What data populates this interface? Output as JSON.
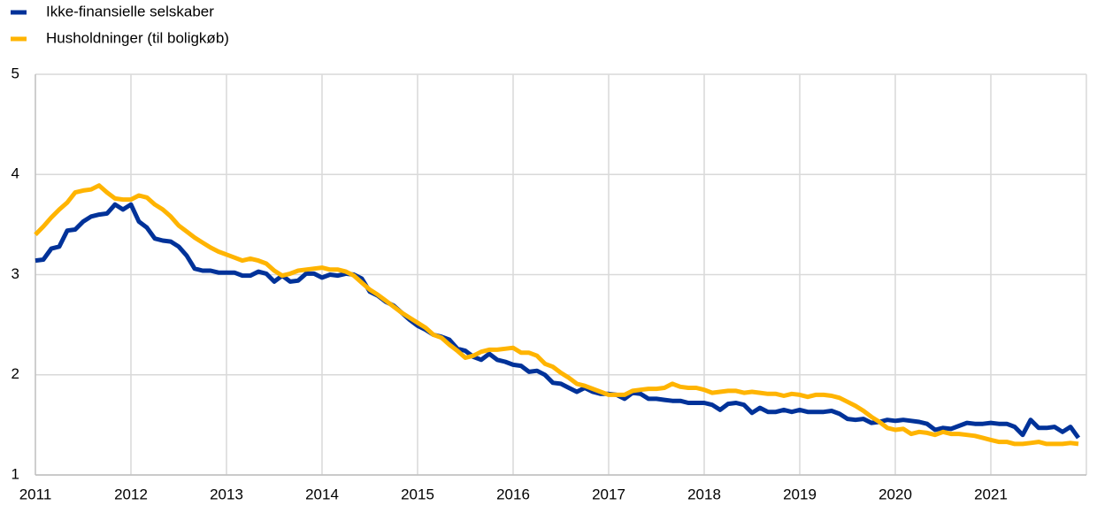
{
  "chart_data": {
    "type": "line",
    "x": [
      2011,
      2011.083,
      2011.167,
      2011.25,
      2011.333,
      2011.417,
      2011.5,
      2011.583,
      2011.667,
      2011.75,
      2011.833,
      2011.917,
      2012,
      2012.083,
      2012.167,
      2012.25,
      2012.333,
      2012.417,
      2012.5,
      2012.583,
      2012.667,
      2012.75,
      2012.833,
      2012.917,
      2013,
      2013.083,
      2013.167,
      2013.25,
      2013.333,
      2013.417,
      2013.5,
      2013.583,
      2013.667,
      2013.75,
      2013.833,
      2013.917,
      2014,
      2014.083,
      2014.167,
      2014.25,
      2014.333,
      2014.417,
      2014.5,
      2014.583,
      2014.667,
      2014.75,
      2014.833,
      2014.917,
      2015,
      2015.083,
      2015.167,
      2015.25,
      2015.333,
      2015.417,
      2015.5,
      2015.583,
      2015.667,
      2015.75,
      2015.833,
      2015.917,
      2016,
      2016.083,
      2016.167,
      2016.25,
      2016.333,
      2016.417,
      2016.5,
      2016.583,
      2016.667,
      2016.75,
      2016.833,
      2016.917,
      2017,
      2017.083,
      2017.167,
      2017.25,
      2017.333,
      2017.417,
      2017.5,
      2017.583,
      2017.667,
      2017.75,
      2017.833,
      2017.917,
      2018,
      2018.083,
      2018.167,
      2018.25,
      2018.333,
      2018.417,
      2018.5,
      2018.583,
      2018.667,
      2018.75,
      2018.833,
      2018.917,
      2019,
      2019.083,
      2019.167,
      2019.25,
      2019.333,
      2019.417,
      2019.5,
      2019.583,
      2019.667,
      2019.75,
      2019.833,
      2019.917,
      2020,
      2020.083,
      2020.167,
      2020.25,
      2020.333,
      2020.417,
      2020.5,
      2020.583,
      2020.667,
      2020.75,
      2020.833,
      2020.917,
      2021,
      2021.083,
      2021.167,
      2021.25,
      2021.333,
      2021.417,
      2021.5,
      2021.583,
      2021.667,
      2021.75,
      2021.833,
      2021.917
    ],
    "series": [
      {
        "name": "Ikke-finansielle selskaber",
        "color": "#003299",
        "values": [
          3.14,
          3.15,
          3.26,
          3.28,
          3.44,
          3.45,
          3.53,
          3.58,
          3.6,
          3.61,
          3.7,
          3.65,
          3.7,
          3.53,
          3.47,
          3.36,
          3.34,
          3.33,
          3.28,
          3.19,
          3.06,
          3.04,
          3.04,
          3.02,
          3.02,
          3.02,
          2.99,
          2.99,
          3.03,
          3.01,
          2.93,
          2.99,
          2.93,
          2.94,
          3.01,
          3.01,
          2.97,
          3.0,
          2.99,
          3.01,
          3.0,
          2.96,
          2.83,
          2.79,
          2.73,
          2.69,
          2.62,
          2.55,
          2.49,
          2.45,
          2.4,
          2.38,
          2.35,
          2.26,
          2.24,
          2.18,
          2.15,
          2.21,
          2.15,
          2.13,
          2.1,
          2.09,
          2.03,
          2.04,
          2.0,
          1.92,
          1.91,
          1.87,
          1.83,
          1.87,
          1.83,
          1.81,
          1.81,
          1.8,
          1.76,
          1.82,
          1.81,
          1.76,
          1.76,
          1.75,
          1.74,
          1.74,
          1.72,
          1.72,
          1.72,
          1.7,
          1.65,
          1.71,
          1.72,
          1.7,
          1.62,
          1.67,
          1.63,
          1.63,
          1.65,
          1.63,
          1.65,
          1.63,
          1.63,
          1.63,
          1.64,
          1.61,
          1.56,
          1.55,
          1.56,
          1.52,
          1.53,
          1.55,
          1.54,
          1.55,
          1.54,
          1.53,
          1.51,
          1.45,
          1.47,
          1.46,
          1.49,
          1.52,
          1.51,
          1.51,
          1.52,
          1.51,
          1.51,
          1.48,
          1.4,
          1.55,
          1.47,
          1.47,
          1.48,
          1.43,
          1.48,
          1.37
        ]
      },
      {
        "name": "Husholdninger (til boligkøb)",
        "color": "#ffb400",
        "values": [
          3.4,
          3.48,
          3.57,
          3.65,
          3.72,
          3.82,
          3.84,
          3.85,
          3.89,
          3.82,
          3.76,
          3.75,
          3.75,
          3.79,
          3.77,
          3.7,
          3.65,
          3.58,
          3.49,
          3.43,
          3.37,
          3.32,
          3.27,
          3.23,
          3.2,
          3.17,
          3.14,
          3.16,
          3.14,
          3.11,
          3.04,
          2.99,
          3.01,
          3.04,
          3.05,
          3.06,
          3.07,
          3.05,
          3.05,
          3.03,
          2.99,
          2.92,
          2.85,
          2.8,
          2.74,
          2.68,
          2.62,
          2.57,
          2.52,
          2.47,
          2.4,
          2.37,
          2.3,
          2.24,
          2.17,
          2.19,
          2.23,
          2.25,
          2.25,
          2.26,
          2.27,
          2.22,
          2.22,
          2.19,
          2.11,
          2.08,
          2.02,
          1.97,
          1.91,
          1.89,
          1.86,
          1.83,
          1.8,
          1.8,
          1.8,
          1.84,
          1.85,
          1.86,
          1.86,
          1.87,
          1.91,
          1.88,
          1.87,
          1.87,
          1.85,
          1.82,
          1.83,
          1.84,
          1.84,
          1.82,
          1.83,
          1.82,
          1.81,
          1.81,
          1.79,
          1.81,
          1.8,
          1.78,
          1.8,
          1.8,
          1.79,
          1.77,
          1.73,
          1.69,
          1.64,
          1.58,
          1.53,
          1.47,
          1.45,
          1.46,
          1.41,
          1.43,
          1.42,
          1.4,
          1.43,
          1.41,
          1.41,
          1.4,
          1.39,
          1.37,
          1.35,
          1.33,
          1.33,
          1.31,
          1.31,
          1.32,
          1.33,
          1.31,
          1.31,
          1.31,
          1.32,
          1.31
        ]
      }
    ],
    "xlim": [
      2011,
      2022
    ],
    "xticks": [
      2011,
      2012,
      2013,
      2014,
      2015,
      2016,
      2017,
      2018,
      2019,
      2020,
      2021
    ],
    "ylim": [
      1,
      5
    ],
    "yticks": [
      1,
      2,
      3,
      4,
      5
    ],
    "grid": true
  }
}
